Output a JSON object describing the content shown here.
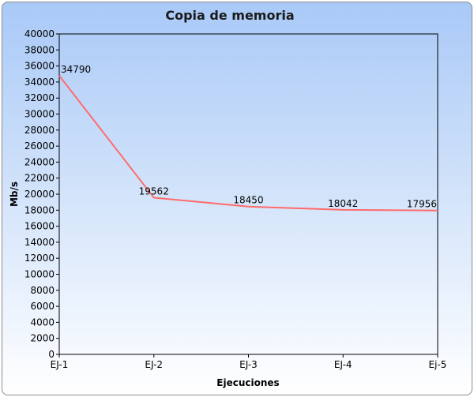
{
  "chart_data": {
    "type": "line",
    "title": "Copia de memoria",
    "xlabel": "Ejecuciones",
    "ylabel": "Mb/s",
    "categories": [
      "EJ-1",
      "EJ-2",
      "EJ-3",
      "EJ-4",
      "Ej-5"
    ],
    "series": [
      {
        "values": [
          34790,
          19562,
          18450,
          18042,
          17956
        ],
        "color": "#ff6b6b"
      }
    ],
    "ylim": [
      0,
      40000
    ],
    "ytick_step": 2000,
    "grid": false,
    "legend": "none"
  }
}
